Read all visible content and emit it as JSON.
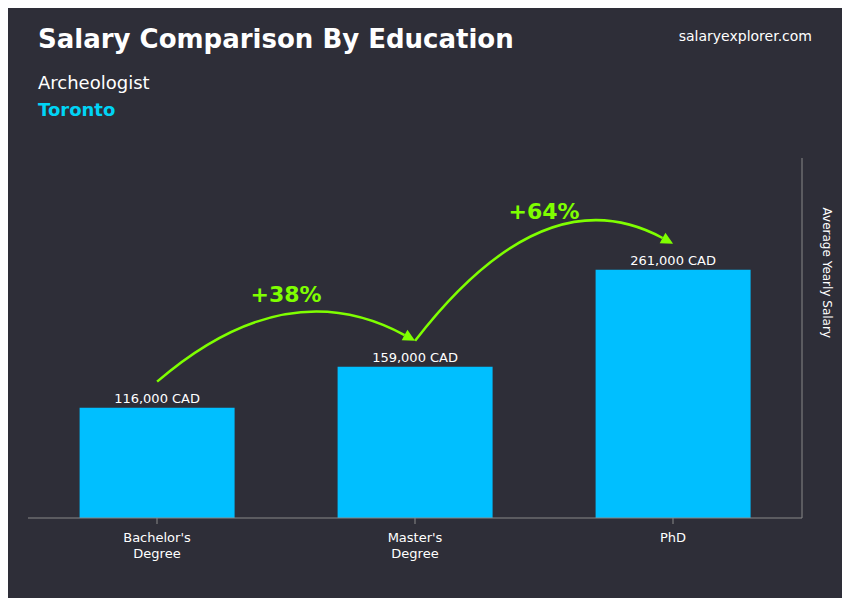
{
  "chart_data": {
    "type": "bar",
    "title": "Salary Comparison By Education",
    "subtitle": [
      {
        "text": "Archeologist",
        "color": "#ffffff"
      },
      {
        "text": "Toronto",
        "color": "#00d4f5"
      }
    ],
    "ylabel": "Average Yearly Salary",
    "categories": [
      "Bachelor's\nDegree",
      "Master's\nDegree",
      "PhD"
    ],
    "values": [
      116000,
      159000,
      261000
    ],
    "value_labels": [
      "116,000 CAD",
      "159,000 CAD",
      "261,000 CAD"
    ],
    "data_labels": true,
    "color": "#00bfff",
    "ylim": [
      0,
      378450
    ],
    "tick_labels": "x",
    "grid": false,
    "annotations": [
      {
        "text": "+38%",
        "color": "#7fff00",
        "from": "Bachelor's\nDegree",
        "to": "Master's\nDegree"
      },
      {
        "text": "+64%",
        "color": "#7fff00",
        "from": "Master's\nDegree",
        "to": "PhD"
      },
      {
        "text": "salaryexplorer.com"
      }
    ]
  }
}
